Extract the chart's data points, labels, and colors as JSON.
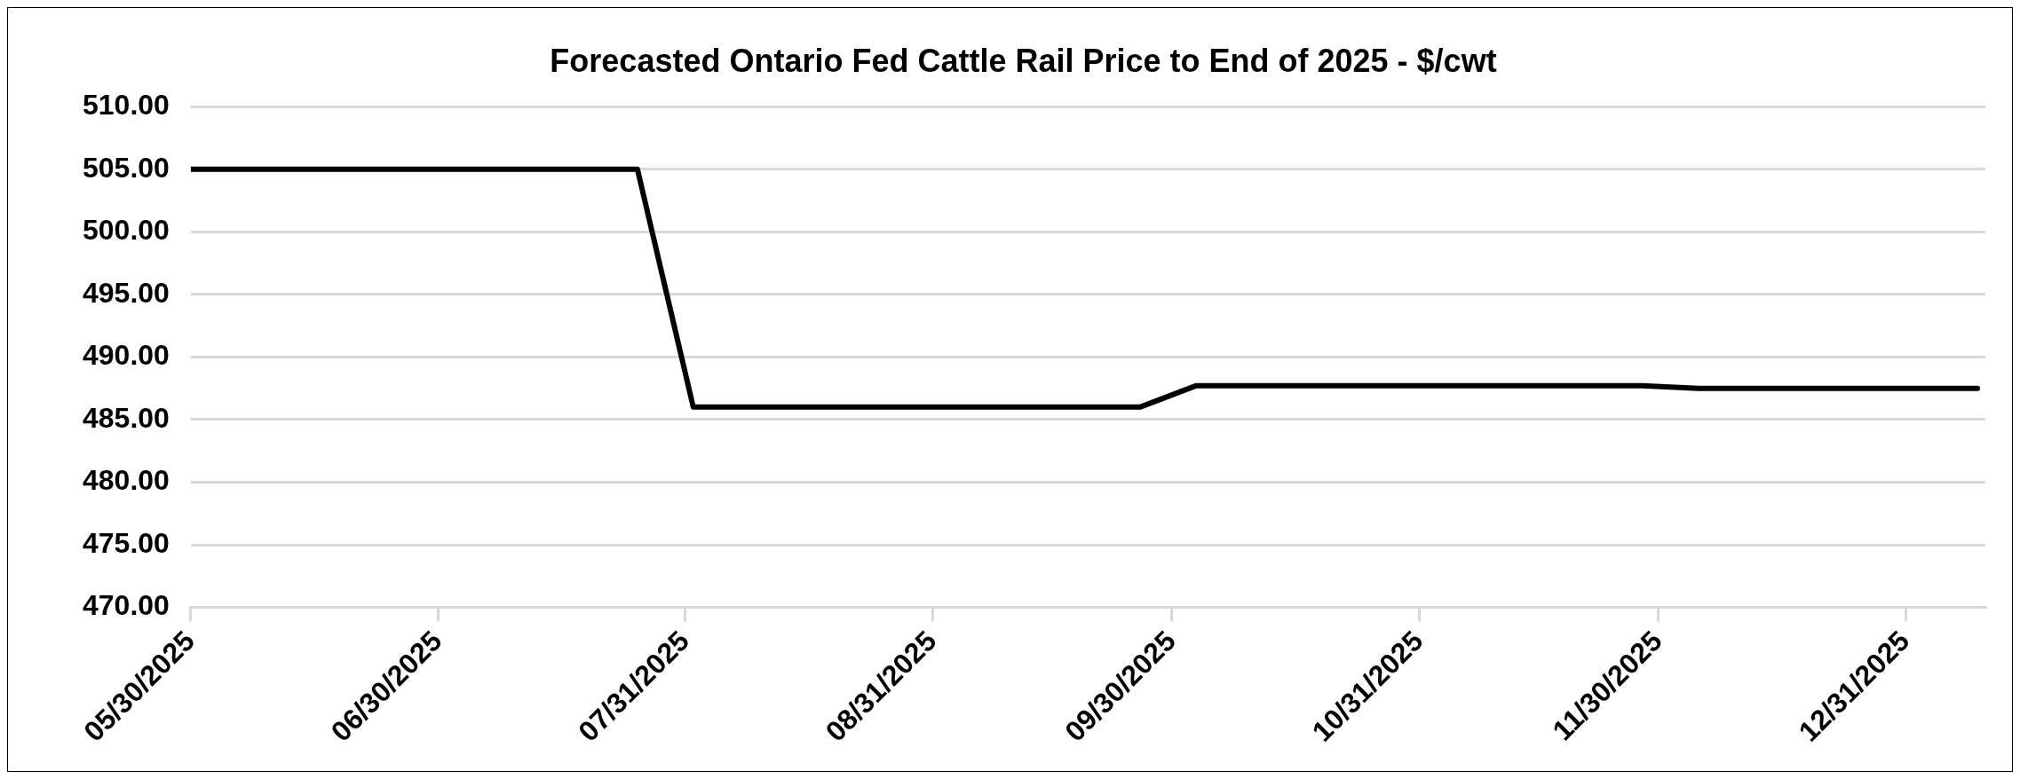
{
  "chart_data": {
    "type": "line",
    "title": "Forecasted Ontario Fed Cattle Rail Price to End of 2025 - $/cwt",
    "x": [
      "2025-05-30",
      "2025-07-25",
      "2025-08-01",
      "2025-09-26",
      "2025-10-03",
      "2025-11-28",
      "2025-12-05",
      "2026-01-09"
    ],
    "series": [
      {
        "color": "#000000",
        "values": [
          505,
          505,
          486,
          486,
          487.7,
          487.7,
          487.5,
          487.5
        ]
      }
    ],
    "xlim": [
      "2025-05-30",
      "2026-01-10"
    ],
    "xticks": [
      {
        "value": "2025-05-30",
        "label": "05/30/2025"
      },
      {
        "value": "2025-06-30",
        "label": "06/30/2025"
      },
      {
        "value": "2025-07-31",
        "label": "07/31/2025"
      },
      {
        "value": "2025-08-31",
        "label": "08/31/2025"
      },
      {
        "value": "2025-09-30",
        "label": "09/30/2025"
      },
      {
        "value": "2025-10-31",
        "label": "10/31/2025"
      },
      {
        "value": "2025-11-30",
        "label": "11/30/2025"
      },
      {
        "value": "2025-12-31",
        "label": "12/31/2025"
      }
    ],
    "ylim": [
      470,
      510
    ],
    "yticks": [
      {
        "value": 470,
        "label": "470.00"
      },
      {
        "value": 475,
        "label": "475.00"
      },
      {
        "value": 480,
        "label": "480.00"
      },
      {
        "value": 485,
        "label": "485.00"
      },
      {
        "value": 490,
        "label": "490.00"
      },
      {
        "value": 495,
        "label": "495.00"
      },
      {
        "value": 500,
        "label": "500.00"
      },
      {
        "value": 505,
        "label": "505.00"
      },
      {
        "value": 510,
        "label": "510.00"
      }
    ],
    "grid": "y",
    "legend": false,
    "marker": "none",
    "line_style": "solid"
  }
}
